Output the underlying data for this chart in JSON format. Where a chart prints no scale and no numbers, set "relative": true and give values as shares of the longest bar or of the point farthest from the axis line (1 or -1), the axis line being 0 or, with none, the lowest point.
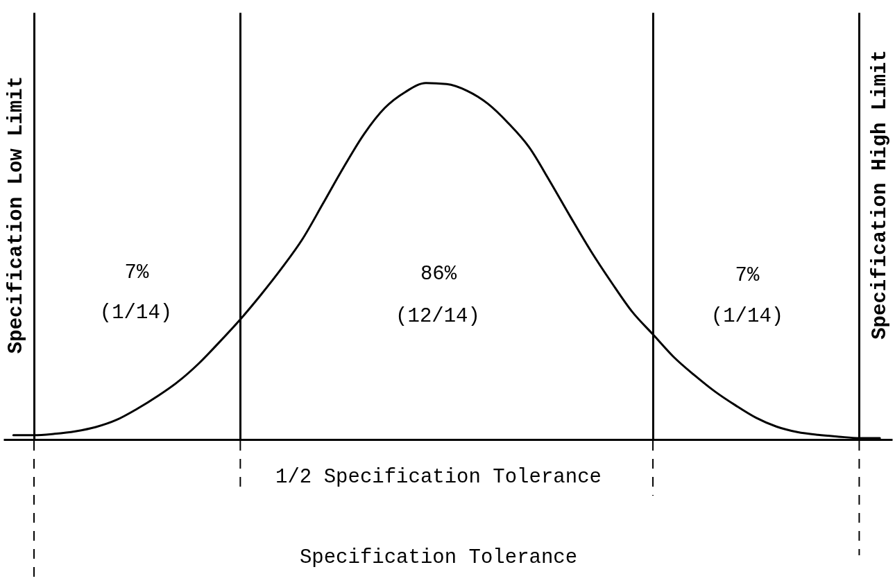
{
  "chart_data": {
    "type": "line",
    "relative": true,
    "categories": [
      null,
      null,
      null,
      null,
      null,
      null,
      null,
      null,
      null,
      null,
      null,
      null,
      null,
      null,
      null,
      null,
      null,
      null,
      null,
      null,
      null,
      null,
      null,
      null,
      null,
      null,
      null,
      null,
      null,
      null,
      null,
      null,
      null,
      null,
      null,
      null,
      null,
      null,
      null,
      null,
      null,
      null,
      null
    ],
    "series": [
      {
        "color": "#000000",
        "values": [
          0.012,
          0.012,
          0.016,
          0.023,
          0.035,
          0.055,
          0.086,
          0.122,
          0.163,
          0.214,
          0.274,
          0.337,
          0.406,
          0.48,
          0.561,
          0.661,
          0.763,
          0.857,
          0.93,
          0.975,
          1,
          0.997,
          0.978,
          0.942,
          0.887,
          0.82,
          0.725,
          0.625,
          0.528,
          0.44,
          0.358,
          0.295,
          0.232,
          0.181,
          0.135,
          0.096,
          0.061,
          0.036,
          0.021,
          0.013,
          0.008,
          0.004,
          0.004
        ]
      }
    ],
    "line_style": "solid",
    "grid": "x",
    "annotations": [
      "Specification Low Limit",
      "Specification High Limit",
      "7%",
      "86%",
      "7%",
      "(1/14)",
      "(12/14)",
      "(1/14)",
      "1/2 Specification Tolerance",
      "Specification Tolerance"
    ]
  }
}
